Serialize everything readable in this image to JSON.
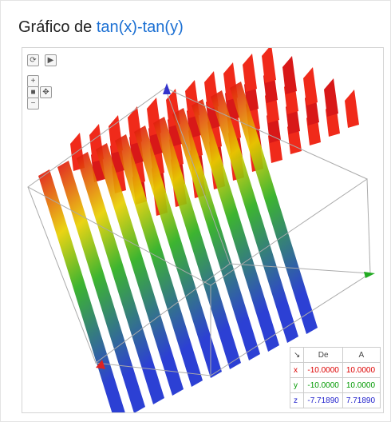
{
  "header": {
    "title": "Gráfico de",
    "function": "tan(x)-tan(y)"
  },
  "table": {
    "columns": [
      "De",
      "A"
    ],
    "rows": [
      [
        "x",
        "-10.0000",
        "10.0000"
      ],
      [
        "y",
        "-10.0000",
        "10.0000"
      ],
      [
        "z",
        "-7.71890",
        "7.71890"
      ]
    ]
  }
}
